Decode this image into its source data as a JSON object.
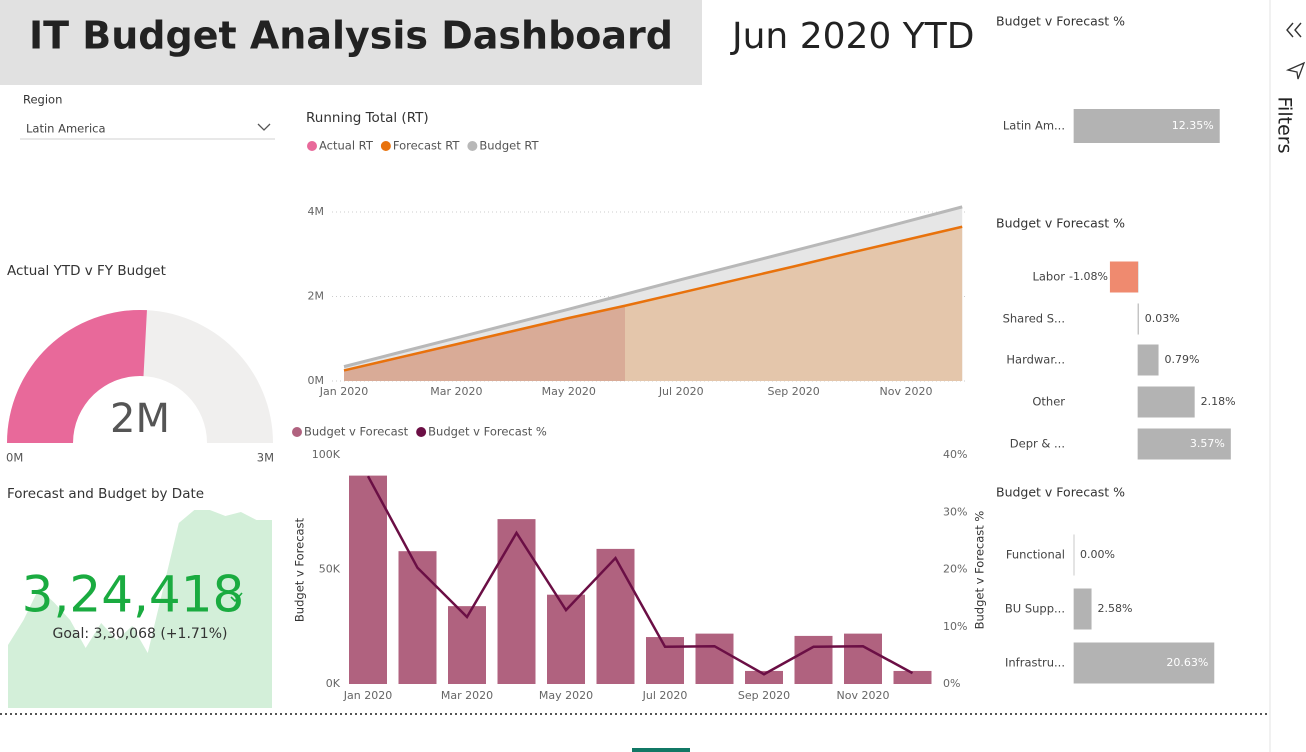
{
  "header": {
    "title": "IT Budget Analysis Dashboard",
    "period": "Jun 2020 YTD"
  },
  "slicer": {
    "label": "Region",
    "value": "Latin America"
  },
  "filters_pane": {
    "label": "Filters"
  },
  "chart_data": [
    {
      "type": "gauge",
      "title": "Actual YTD v FY Budget",
      "values": [
        1550000
      ],
      "value_labels": [
        "2M"
      ],
      "ylim": [
        0,
        3000000
      ],
      "yticks": [
        {
          "value": 0,
          "label": "0M"
        },
        {
          "value": 3000000,
          "label": "3M"
        }
      ],
      "color": "#e8699a",
      "track_color": "#f0efee"
    },
    {
      "type": "kpi",
      "title": "Forecast and Budget by Date",
      "values": [
        324418
      ],
      "value_labels": [
        "3,24,418"
      ],
      "goal_label": "Goal: 3,30,068 (+1.71%)",
      "color": "#1aab40",
      "trend": [
        63,
        88,
        120,
        105,
        88,
        60,
        85,
        68,
        82,
        55,
        120,
        185,
        198,
        198,
        192,
        196,
        188,
        188
      ],
      "trend_color": "#d3efd9"
    },
    {
      "type": "area",
      "title": "Running Total (RT)",
      "categories": [
        "Jan 2020",
        null,
        "Mar 2020",
        null,
        "May 2020",
        null,
        "Jul 2020",
        null,
        "Sep 2020",
        null,
        "Nov 2020",
        null
      ],
      "series": [
        {
          "name": "Actual RT",
          "color": "#e8699a",
          "fill": "#d9ab97",
          "values": [
            250000,
            550000,
            860000,
            1170000,
            1480000,
            1780000,
            null,
            null,
            null,
            null,
            null,
            null
          ]
        },
        {
          "name": "Forecast RT",
          "color": "#e8720c",
          "fill": "#e4c6ab",
          "values": [
            250000,
            560000,
            870000,
            1180000,
            1490000,
            1780000,
            2090000,
            2400000,
            2710000,
            3030000,
            3340000,
            3650000
          ]
        },
        {
          "name": "Budget RT",
          "color": "#b8b8b8",
          "fill": "#e6e6e6",
          "values": [
            340000,
            680000,
            1020000,
            1360000,
            1700000,
            2050000,
            2400000,
            2740000,
            3080000,
            3420000,
            3770000,
            4120000
          ]
        }
      ],
      "ylim": [
        0,
        4200000
      ],
      "yticks": [
        {
          "value": 0,
          "label": "0M"
        },
        {
          "value": 2000000,
          "label": "2M"
        },
        {
          "value": 4000000,
          "label": "4M"
        }
      ],
      "grid": true
    },
    {
      "type": "bar-line",
      "categories": [
        "Jan 2020",
        null,
        "Mar 2020",
        null,
        "May 2020",
        null,
        "Jul 2020",
        null,
        "Sep 2020",
        null,
        "Nov 2020",
        null
      ],
      "series": [
        {
          "name": "Budget v Forecast",
          "type": "bar",
          "color": "#b0627f",
          "values": [
            91000,
            58000,
            34000,
            72000,
            39000,
            59000,
            20500,
            22000,
            5700,
            21000,
            22000,
            5700
          ]
        },
        {
          "name": "Budget v Forecast %",
          "type": "line",
          "axis": "y2",
          "color": "#6b0f45",
          "values": [
            36.3,
            20.3,
            11.7,
            26.4,
            12.9,
            22,
            6.5,
            6.6,
            1.7,
            6.5,
            6.6,
            1.9
          ]
        }
      ],
      "ylabel": "Budget v Forecast",
      "y2label": "Budget v Forecast %",
      "ylim": [
        0,
        100000
      ],
      "yticks": [
        {
          "value": 0,
          "label": "0K"
        },
        {
          "value": 50000,
          "label": "50K"
        },
        {
          "value": 100000,
          "label": "100K"
        }
      ],
      "y2lim": [
        0,
        40
      ],
      "y2ticks": [
        {
          "value": 0,
          "label": "0%"
        },
        {
          "value": 10,
          "label": "10%"
        },
        {
          "value": 20,
          "label": "20%"
        },
        {
          "value": 30,
          "label": "30%"
        },
        {
          "value": 40,
          "label": "40%"
        }
      ]
    },
    {
      "type": "hbar",
      "title": "Budget v Forecast %",
      "categories": [
        "Latin Am..."
      ],
      "values": [
        12.35
      ],
      "value_labels": [
        "12.35%"
      ],
      "color": "#b3b3b3"
    },
    {
      "type": "hbar",
      "title": "Budget v Forecast %",
      "categories": [
        "Labor",
        "Shared S...",
        "Hardwar...",
        "Other",
        "Depr & ..."
      ],
      "values": [
        -1.08,
        0.03,
        0.79,
        2.18,
        3.57
      ],
      "value_labels": [
        "-1.08%",
        "0.03%",
        "0.79%",
        "2.18%",
        "3.57%"
      ],
      "color": "#b3b3b3",
      "negative_color": "#ef8a6f"
    },
    {
      "type": "hbar",
      "title": "Budget v Forecast %",
      "categories": [
        "Functional",
        "BU Supp...",
        "Infrastru..."
      ],
      "values": [
        0,
        2.58,
        20.63
      ],
      "value_labels": [
        "0.00%",
        "2.58%",
        "20.63%"
      ],
      "color": "#b3b3b3"
    }
  ]
}
